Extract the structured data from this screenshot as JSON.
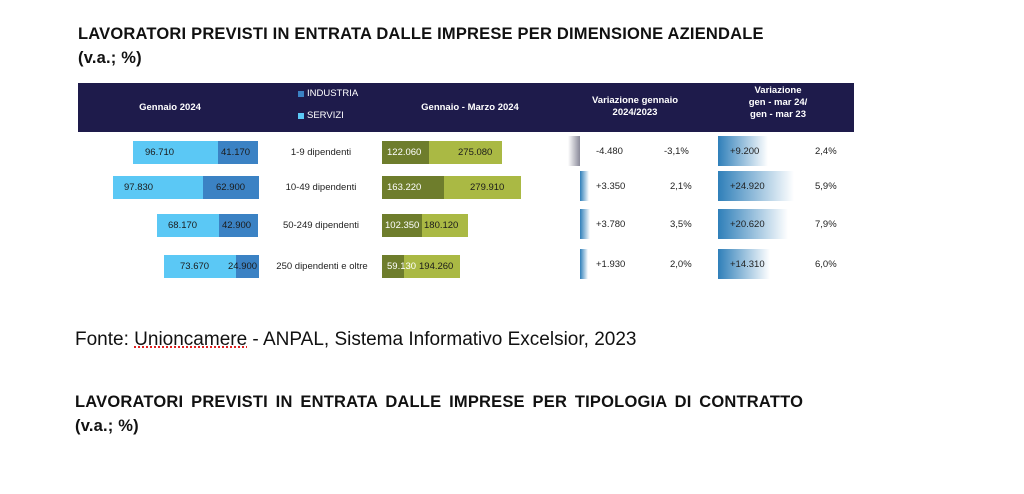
{
  "title1": {
    "line1": "LAVORATORI PREVISTI IN ENTRATA DALLE IMPRESE PER DIMENSIONE AZIENDALE",
    "line2": "(v.a.; %)"
  },
  "table": {
    "headers": {
      "left": "Gennaio 2024",
      "legend_industria": "INDUSTRIA",
      "legend_servizi": "SERVIZI",
      "middle": "Gennaio  - Marzo 2024",
      "var1_line1": "Variazione gennaio",
      "var1_line2": "2024/2023",
      "var2_line1": "Variazione",
      "var2_line2": "gen - mar 24/",
      "var2_line3": "gen - mar 23"
    },
    "colors": {
      "header_bg": "#1e1b4b",
      "industria": "#3b82c4",
      "servizi": "#5bc8f5",
      "gm_industria": "#6e7d2c",
      "gm_servizi": "#aab944"
    },
    "rows": [
      {
        "label": "1-9 dipendenti",
        "jan_servizi": "96.710",
        "jan_industria": "41.170",
        "gm_industria": "122.060",
        "gm_servizi": "275.080",
        "var1_num": "-4.480",
        "var1_pct": "-3,1%",
        "var2_num": "+9.200",
        "var2_pct": "2,4%"
      },
      {
        "label": "10-49 dipendenti",
        "jan_servizi": "97.830",
        "jan_industria": "62.900",
        "gm_industria": "163.220",
        "gm_servizi": "279.910",
        "var1_num": "+3.350",
        "var1_pct": "2,1%",
        "var2_num": "+24.920",
        "var2_pct": "5,9%"
      },
      {
        "label": "50-249 dipendenti",
        "jan_servizi": "68.170",
        "jan_industria": "42.900",
        "gm_industria": "102.350",
        "gm_servizi": "180.120",
        "var1_num": "+3.780",
        "var1_pct": "3,5%",
        "var2_num": "+20.620",
        "var2_pct": "7,9%"
      },
      {
        "label": "250 dipendenti e oltre",
        "jan_servizi": "73.670",
        "jan_industria": "24.900",
        "gm_industria": "59.130",
        "gm_servizi": "194.260",
        "var1_num": "+1.930",
        "var1_pct": "2,0%",
        "var2_num": "+14.310",
        "var2_pct": "6,0%"
      }
    ]
  },
  "source": {
    "prefix": "Fonte: ",
    "underlined": "Unioncamere",
    "suffix": " - ANPAL, Sistema Informativo Excelsior, 2023"
  },
  "title2": {
    "line1": "LAVORATORI PREVISTI IN ENTRATA DALLE IMPRESE PER TIPOLOGIA DI CONTRATTO",
    "line2": "(v.a.; %)"
  }
}
